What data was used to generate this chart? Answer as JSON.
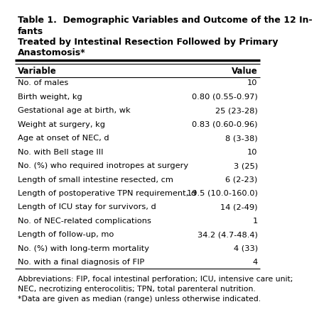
{
  "title_line1": "Table 1.  Demographic Variables and Outcome of the 12 In-",
  "title_line2": "fants",
  "title_line3": "Treated by Intestinal Resection Followed by Primary",
  "title_line4": "Anastomosis*",
  "col_headers": [
    "Variable",
    "Value"
  ],
  "rows": [
    [
      "No. of males",
      "10"
    ],
    [
      "Birth weight, kg",
      "0.80 (0.55-0.97)"
    ],
    [
      "Gestational age at birth, wk",
      "25 (23-28)"
    ],
    [
      "Weight at surgery, kg",
      "0.83 (0.60-0.96)"
    ],
    [
      "Age at onset of NEC, d",
      "8 (3-38)"
    ],
    [
      "No. with Bell stage III",
      "10"
    ],
    [
      "No. (%) who required inotropes at surgery",
      "3 (25)"
    ],
    [
      "Length of small intestine resected, cm",
      "6 (2-23)"
    ],
    [
      "Length of postoperative TPN requirement, d",
      "19.5 (10.0-160.0)"
    ],
    [
      "Length of ICU stay for survivors, d",
      "14 (2-49)"
    ],
    [
      "No. of NEC-related complications",
      "1"
    ],
    [
      "Length of follow-up, mo",
      "34.2 (4.7-48.4)"
    ],
    [
      "No. (%) with long-term mortality",
      "4 (33)"
    ],
    [
      "No. with a final diagnosis of FIP",
      "4"
    ]
  ],
  "footnote": "Abbreviations: FIP, focal intestinal perforation; ICU, intensive care unit;\nNEC, necrotizing enterocolitis; TPN, total parenteral nutrition.\n*Data are given as median (range) unless otherwise indicated.",
  "bg_color": "#ffffff",
  "text_color": "#000000",
  "header_fontsize": 8.5,
  "row_fontsize": 8.2,
  "title_fontsize": 9.0,
  "footnote_fontsize": 7.8
}
